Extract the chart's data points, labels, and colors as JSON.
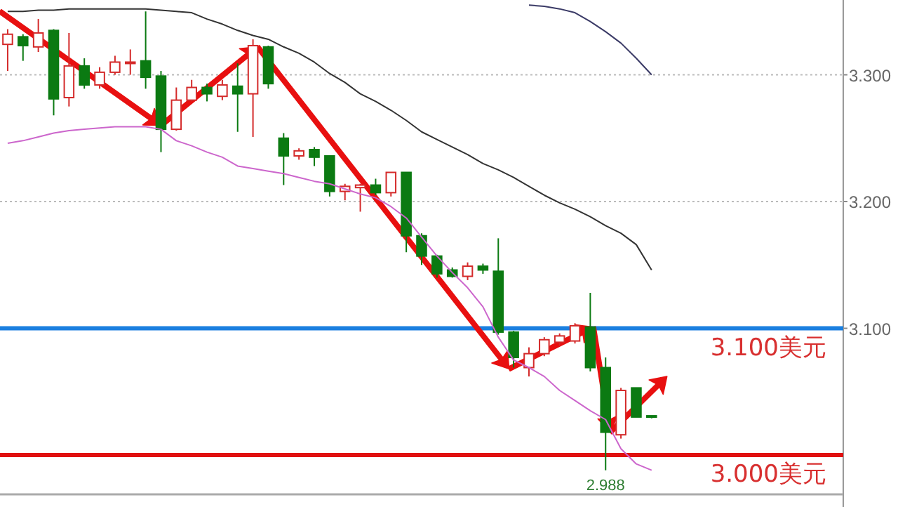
{
  "chart_data": {
    "type": "candlestick",
    "categories": [
      null,
      null,
      null,
      null,
      null,
      null,
      null,
      null,
      null,
      null,
      null,
      null,
      null,
      null,
      null,
      null,
      null,
      null,
      null,
      null,
      null,
      null,
      null,
      null,
      null,
      null,
      null,
      null,
      null,
      null,
      null,
      null,
      null,
      null,
      null,
      null,
      null,
      null,
      null,
      null,
      null,
      null,
      null
    ],
    "ohlc": [
      [
        3.324,
        3.336,
        3.303,
        3.332
      ],
      [
        3.33,
        3.332,
        3.311,
        3.323
      ],
      [
        3.322,
        3.344,
        3.318,
        3.333
      ],
      [
        3.335,
        3.336,
        3.268,
        3.281
      ],
      [
        3.282,
        3.333,
        3.275,
        3.307
      ],
      [
        3.307,
        3.313,
        3.289,
        3.292
      ],
      [
        3.292,
        3.306,
        3.289,
        3.302
      ],
      [
        3.302,
        3.315,
        3.3,
        3.31
      ],
      [
        3.309,
        3.32,
        3.3,
        3.31
      ],
      [
        3.311,
        3.35,
        3.289,
        3.298
      ],
      [
        3.299,
        3.303,
        3.239,
        3.257
      ],
      [
        3.257,
        3.29,
        3.256,
        3.28
      ],
      [
        3.28,
        3.296,
        3.279,
        3.29
      ],
      [
        3.29,
        3.293,
        3.279,
        3.285
      ],
      [
        3.283,
        3.296,
        3.28,
        3.292
      ],
      [
        3.291,
        3.309,
        3.255,
        3.285
      ],
      [
        3.285,
        3.328,
        3.251,
        3.323
      ],
      [
        3.322,
        3.323,
        3.289,
        3.293
      ],
      [
        3.25,
        3.254,
        3.213,
        3.236
      ],
      [
        3.236,
        3.242,
        3.233,
        3.24
      ],
      [
        3.241,
        3.243,
        3.228,
        3.235
      ],
      [
        3.236,
        3.236,
        3.204,
        3.208
      ],
      [
        3.208,
        3.214,
        3.201,
        3.212
      ],
      [
        3.211,
        3.214,
        3.192,
        3.213
      ],
      [
        3.213,
        3.218,
        3.205,
        3.207
      ],
      [
        3.207,
        3.223,
        3.204,
        3.223
      ],
      [
        3.223,
        3.223,
        3.16,
        3.173
      ],
      [
        3.173,
        3.175,
        3.15,
        3.157
      ],
      [
        3.157,
        3.158,
        3.14,
        3.143
      ],
      [
        3.146,
        3.148,
        3.14,
        3.141
      ],
      [
        3.141,
        3.152,
        3.138,
        3.149
      ],
      [
        3.149,
        3.151,
        3.143,
        3.146
      ],
      [
        3.145,
        3.171,
        3.095,
        3.097
      ],
      [
        3.097,
        3.098,
        3.069,
        3.077
      ],
      [
        3.069,
        3.085,
        3.062,
        3.08
      ],
      [
        3.08,
        3.093,
        3.078,
        3.091
      ],
      [
        3.089,
        3.096,
        3.086,
        3.094
      ],
      [
        3.09,
        3.104,
        3.088,
        3.102
      ],
      [
        3.101,
        3.128,
        3.066,
        3.069
      ],
      [
        3.069,
        3.077,
        2.988,
        3.018
      ],
      [
        3.016,
        3.053,
        3.013,
        3.051
      ],
      [
        3.053,
        3.053,
        3.03,
        3.03
      ],
      [
        3.031,
        3.031,
        3.029,
        3.03
      ]
    ],
    "series": [
      {
        "type": "line",
        "color": "#333333",
        "values": [
          3.35,
          3.35,
          3.351,
          3.351,
          3.352,
          3.352,
          3.352,
          3.352,
          3.352,
          3.352,
          3.351,
          3.35,
          3.349,
          3.344,
          3.34,
          3.335,
          3.331,
          3.328,
          3.322,
          3.317,
          3.31,
          3.301,
          3.294,
          3.285,
          3.279,
          3.272,
          3.264,
          3.255,
          3.249,
          3.243,
          3.237,
          3.23,
          3.225,
          3.219,
          3.212,
          3.205,
          3.199,
          3.194,
          3.188,
          3.181,
          3.175,
          3.166,
          3.146
        ]
      },
      {
        "type": "line",
        "color": "#3a3a66",
        "values": [
          null,
          null,
          null,
          null,
          null,
          null,
          null,
          null,
          null,
          null,
          null,
          null,
          null,
          null,
          null,
          null,
          null,
          null,
          null,
          null,
          null,
          null,
          null,
          null,
          null,
          null,
          null,
          null,
          null,
          null,
          null,
          null,
          null,
          null,
          3.355,
          3.354,
          3.352,
          3.349,
          3.342,
          3.334,
          3.325,
          3.313,
          3.3
        ]
      },
      {
        "type": "line",
        "color": "#cc66cc",
        "values": [
          3.246,
          3.248,
          3.251,
          3.254,
          3.256,
          3.257,
          3.258,
          3.259,
          3.259,
          3.259,
          3.257,
          3.248,
          3.244,
          3.239,
          3.235,
          3.228,
          3.226,
          3.224,
          3.222,
          3.219,
          3.216,
          3.214,
          3.21,
          3.206,
          3.203,
          3.196,
          3.187,
          3.172,
          3.157,
          3.144,
          3.132,
          3.117,
          3.093,
          3.075,
          3.069,
          3.062,
          3.051,
          3.043,
          3.035,
          3.028,
          3.005,
          2.993,
          2.988
        ]
      }
    ],
    "ylim": [
      2.969,
      3.359
    ],
    "yticks": [
      {
        "value": 3.1,
        "label": "3.100"
      },
      {
        "value": 3.2,
        "label": "3.200"
      },
      {
        "value": 3.3,
        "label": "3.300"
      }
    ],
    "grid": "y",
    "ref_lines": [
      {
        "axis": "y",
        "value": 3.1,
        "label": "3.100美元",
        "color": "#1a7fe0"
      },
      {
        "axis": "y",
        "value": 3.0,
        "label": "3.000美元",
        "color": "#e01010"
      }
    ],
    "annotations": [
      {
        "text": "2.988",
        "y": 2.988
      }
    ]
  }
}
